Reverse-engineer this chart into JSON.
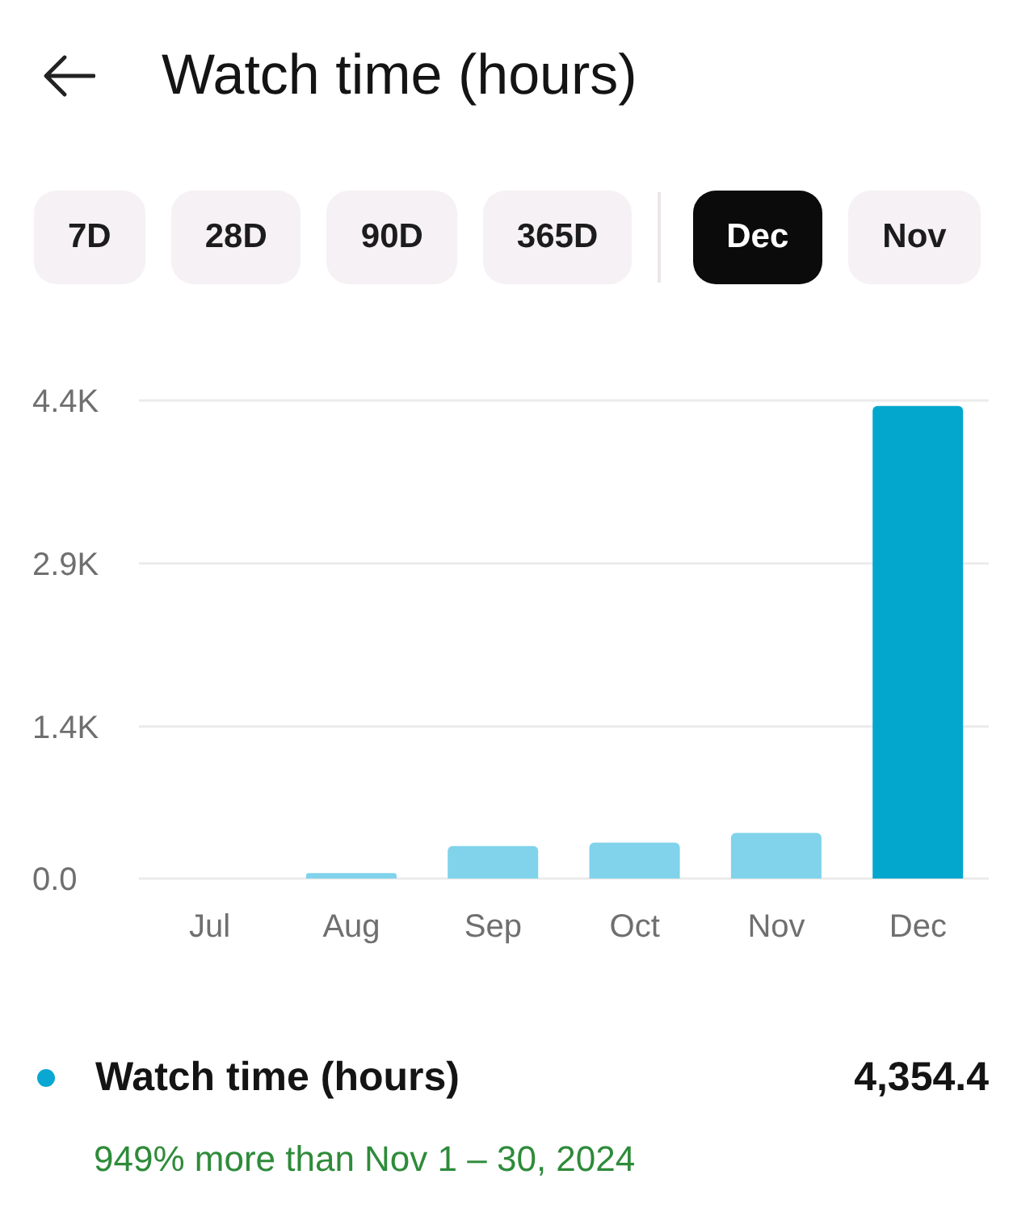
{
  "chart_data": {
    "type": "bar",
    "title": "Watch time (hours)",
    "categories": [
      "Jul",
      "Aug",
      "Sep",
      "Oct",
      "Nov",
      "Dec"
    ],
    "series": [
      {
        "name": "Watch time (hours)",
        "color": "#0aa7d2",
        "colors": [
          "#80d3eb",
          "#80d3eb",
          "#80d3eb",
          "#80d3eb",
          "#80d3eb",
          "#03a7ce"
        ],
        "values": [
          0,
          50,
          300,
          330,
          420,
          4350
        ]
      }
    ],
    "ylim": [
      0,
      4400
    ],
    "yticks": [
      {
        "value": 0,
        "label": "0.0"
      },
      {
        "value": 1400,
        "label": "1.4K"
      },
      {
        "value": 2900,
        "label": "2.9K"
      },
      {
        "value": 4400,
        "label": "4.4K"
      }
    ],
    "grid": "y",
    "legend": "bottom",
    "annotations": [
      "7D",
      "28D",
      "90D",
      "365D",
      "Dec",
      "Nov",
      "4,354.4",
      "949% more than Nov 1 – 30, 2024"
    ]
  }
}
